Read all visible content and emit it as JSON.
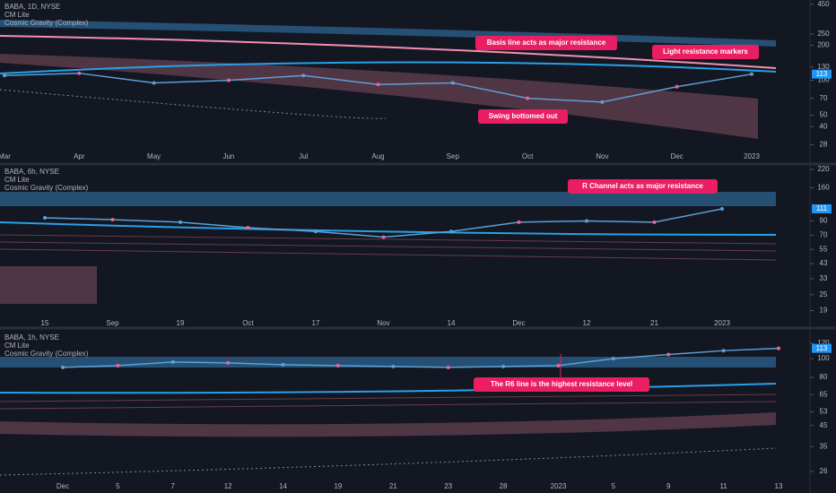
{
  "chart_data": [
    {
      "type": "line",
      "title": "BABA, 1D, NYSE",
      "indicators": [
        "CM Lite",
        "Cosmic Gravity (Complex)"
      ],
      "categories": [
        "Mar",
        "Apr",
        "May",
        "Jun",
        "Jul",
        "Aug",
        "Sep",
        "Oct",
        "Nov",
        "Dec",
        "2023"
      ],
      "values": [
        110,
        115,
        95,
        100,
        110,
        92,
        95,
        70,
        65,
        88,
        113
      ],
      "color": "#5d9fd6",
      "log_scale": true,
      "ylim": [
        24,
        490
      ],
      "yticks": [
        450,
        250,
        200,
        130,
        100,
        70,
        50,
        40,
        28
      ],
      "last_value": 113,
      "annotations": [
        "Basis line acts as major resistance",
        "Light resistance markers",
        "Swing bottomed out"
      ]
    },
    {
      "type": "line",
      "title": "BABA, 6h, NYSE",
      "indicators": [
        "CM Lite",
        "Cosmic Gravity (Complex)"
      ],
      "categories": [
        "15",
        "Sep",
        "19",
        "Oct",
        "17",
        "Nov",
        "14",
        "Dec",
        "12",
        "21",
        "2023"
      ],
      "values": [
        95,
        92,
        88,
        80,
        75,
        68,
        75,
        88,
        90,
        88,
        111
      ],
      "color": "#5d9fd6",
      "log_scale": true,
      "ylim": [
        18,
        234
      ],
      "yticks": [
        220,
        160,
        90,
        70,
        55,
        43,
        33,
        25,
        19
      ],
      "last_value": 111,
      "annotations": [
        "R Channel acts as major resistance"
      ]
    },
    {
      "type": "line",
      "title": "BABA, 1h, NYSE",
      "indicators": [
        "CM Lite",
        "Cosmic Gravity (Complex)"
      ],
      "categories": [
        "Dec",
        "5",
        "7",
        "12",
        "14",
        "19",
        "21",
        "23",
        "28",
        "2023",
        "5",
        "9",
        "11",
        "13"
      ],
      "values": [
        90,
        92,
        96,
        95,
        93,
        92,
        91,
        90,
        91,
        92,
        100,
        105,
        110,
        113
      ],
      "color": "#5d9fd6",
      "log_scale": true,
      "ylim": [
        23.6,
        138
      ],
      "yticks": [
        120,
        100,
        80,
        65,
        53,
        45,
        35,
        26
      ],
      "last_value": 113,
      "annotations": [
        "The R6 line is the highest resistance level"
      ]
    }
  ]
}
